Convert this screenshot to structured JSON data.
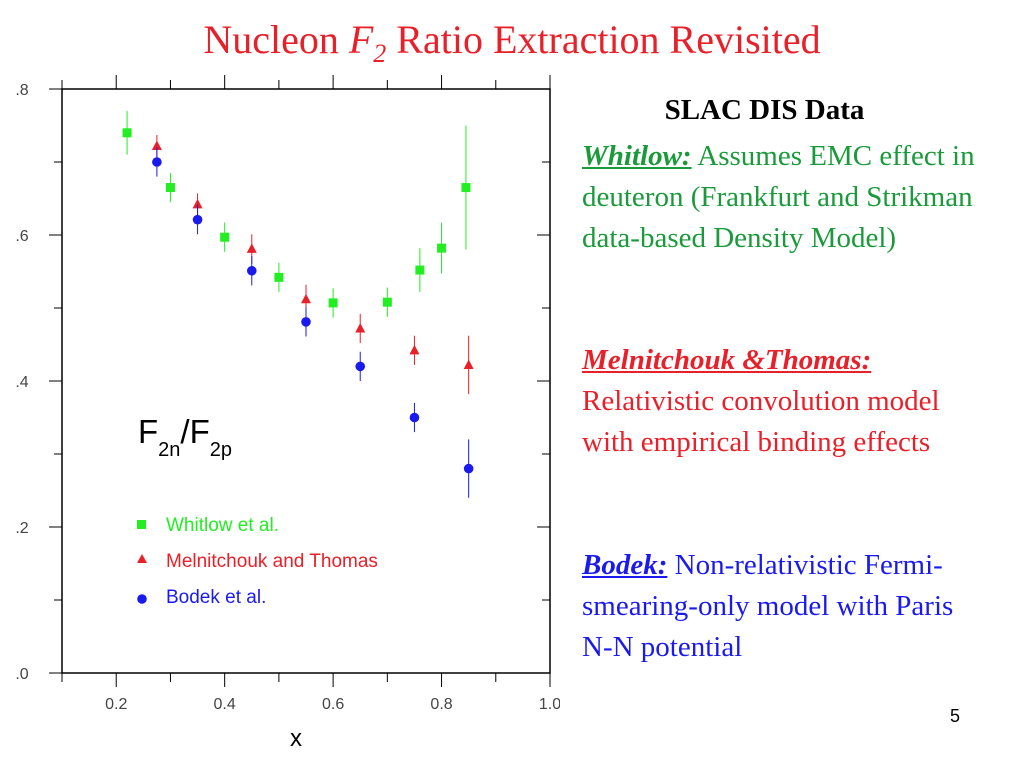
{
  "slide": {
    "title_prefix": "Nucleon ",
    "title_f": "F",
    "title_sub": "2",
    "title_suffix": " Ratio Extraction Revisited",
    "page_number": "5"
  },
  "chart_data": {
    "type": "scatter",
    "title": "",
    "xlabel": "x",
    "ylabel": "",
    "plot_label_main": "F",
    "plot_label_sub1": "2n",
    "plot_label_slash": "/F",
    "plot_label_sub2": "2p",
    "xlim": [
      0.1,
      1.0
    ],
    "ylim": [
      0.0,
      0.8
    ],
    "x_ticks": [
      0.2,
      0.4,
      0.6,
      0.8,
      1.0
    ],
    "x_tick_labels": [
      "0.2",
      "0.4",
      "0.6",
      "0.8",
      "1.0"
    ],
    "y_ticks": [
      0.0,
      0.2,
      0.4,
      0.6,
      0.8
    ],
    "y_tick_labels": [
      ".0",
      ".2",
      ".4",
      ".6",
      ".8"
    ],
    "legend_position": "bottom-left",
    "series": [
      {
        "name": "Whitlow et al.",
        "marker": "square",
        "color": "#22ee22",
        "points": [
          {
            "x": 0.22,
            "y": 0.74,
            "err": 0.03
          },
          {
            "x": 0.3,
            "y": 0.665,
            "err": 0.02
          },
          {
            "x": 0.4,
            "y": 0.597,
            "err": 0.02
          },
          {
            "x": 0.5,
            "y": 0.542,
            "err": 0.02
          },
          {
            "x": 0.6,
            "y": 0.507,
            "err": 0.02
          },
          {
            "x": 0.7,
            "y": 0.508,
            "err": 0.02
          },
          {
            "x": 0.76,
            "y": 0.552,
            "err": 0.03
          },
          {
            "x": 0.8,
            "y": 0.582,
            "err": 0.035
          },
          {
            "x": 0.845,
            "y": 0.665,
            "err": 0.085
          }
        ]
      },
      {
        "name": "Melnitchouk and Thomas",
        "marker": "triangle",
        "color": "#e8202a",
        "points": [
          {
            "x": 0.275,
            "y": 0.722,
            "err": 0.015
          },
          {
            "x": 0.35,
            "y": 0.642,
            "err": 0.015
          },
          {
            "x": 0.45,
            "y": 0.581,
            "err": 0.02
          },
          {
            "x": 0.55,
            "y": 0.512,
            "err": 0.02
          },
          {
            "x": 0.65,
            "y": 0.472,
            "err": 0.02
          },
          {
            "x": 0.75,
            "y": 0.442,
            "err": 0.02
          },
          {
            "x": 0.85,
            "y": 0.422,
            "err": 0.04
          }
        ]
      },
      {
        "name": "Bodek et al.",
        "marker": "circle",
        "color": "#1a1aee",
        "points": [
          {
            "x": 0.275,
            "y": 0.7,
            "err": 0.02
          },
          {
            "x": 0.35,
            "y": 0.621,
            "err": 0.02
          },
          {
            "x": 0.45,
            "y": 0.551,
            "err": 0.02
          },
          {
            "x": 0.55,
            "y": 0.481,
            "err": 0.02
          },
          {
            "x": 0.65,
            "y": 0.42,
            "err": 0.02
          },
          {
            "x": 0.75,
            "y": 0.35,
            "err": 0.02
          },
          {
            "x": 0.85,
            "y": 0.28,
            "err": 0.04
          }
        ]
      }
    ]
  },
  "description": {
    "heading": "SLAC DIS Data",
    "whitlow": {
      "name": "Whitlow:",
      "text": "Assumes EMC effect in deuteron (Frankfurt and Strikman data-based Density Model)",
      "color": "#1a9a3a"
    },
    "melnitchouk": {
      "name": "Melnitchouk &Thomas:",
      "text": "Relativistic convolution model with empirical binding effects",
      "color": "#e8202a"
    },
    "bodek": {
      "name": "Bodek:",
      "text": "Non-relativistic Fermi-smearing-only model with Paris N-N potential",
      "color": "#1a1aee"
    }
  }
}
